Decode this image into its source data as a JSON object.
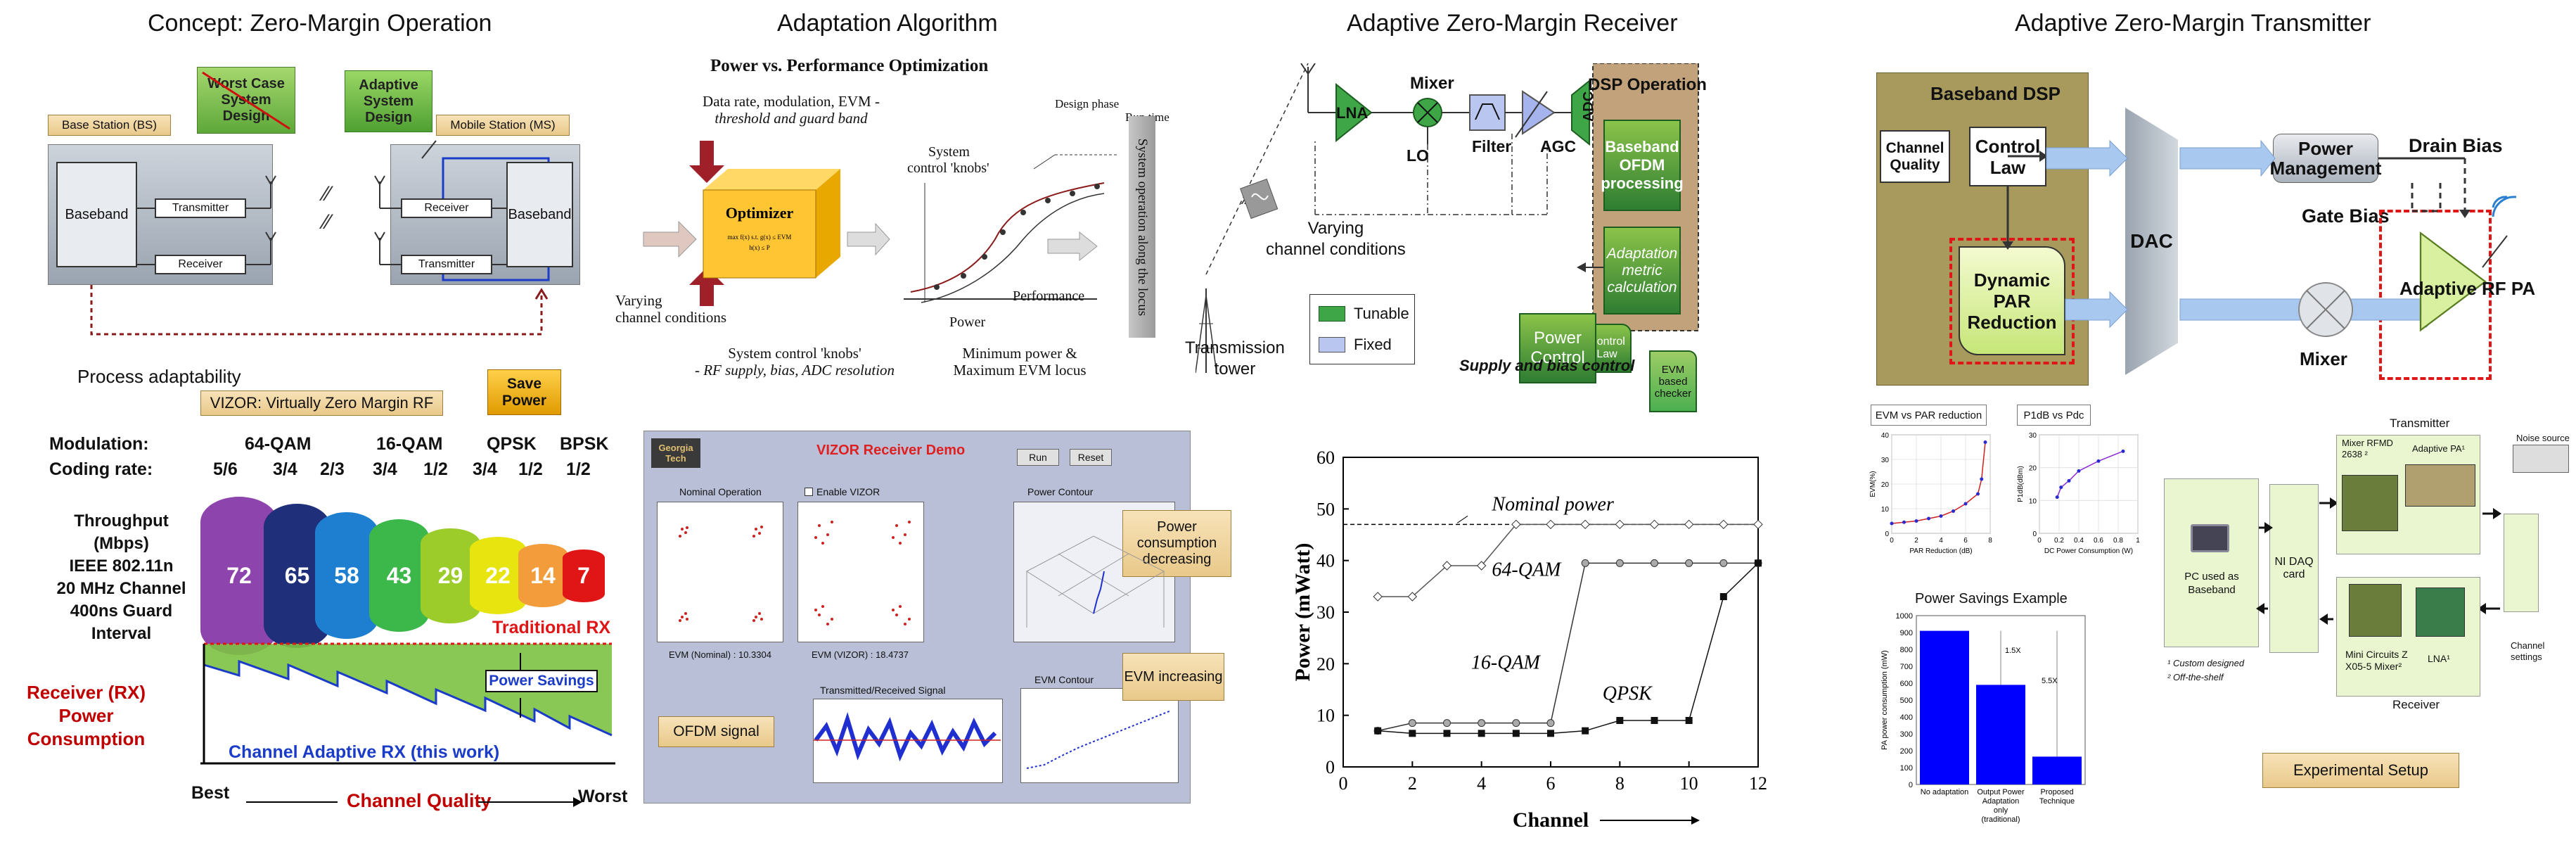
{
  "titles": {
    "concept": "Concept: Zero-Margin Operation",
    "adaptation": "Adaptation Algorithm",
    "receiver": "Adaptive Zero-Margin Receiver",
    "transmitter": "Adaptive Zero-Margin Transmitter"
  },
  "concept": {
    "worst_case": "Worst Case System Design",
    "adaptive": "Adaptive System Design",
    "base_station": "Base Station (BS)",
    "mobile_station": "Mobile Station (MS)",
    "baseband": "Baseband",
    "transmitter": "Transmitter",
    "receiver": "Receiver",
    "process": "Process adaptability",
    "vizor": "VIZOR: Virtually Zero Margin RF",
    "save_power": "Save Power",
    "modulation_label": "Modulation:",
    "coding_label": "Coding rate:",
    "modulations": [
      "64-QAM",
      "16-QAM",
      "QPSK",
      "BPSK"
    ],
    "coding_rates": [
      "5/6",
      "3/4",
      "2/3",
      "3/4",
      "1/2",
      "3/4",
      "1/2",
      "1/2"
    ],
    "throughput_lines": [
      "Throughput (Mbps)",
      "IEEE 802.11n",
      "20 MHz Channel",
      "400ns Guard Interval"
    ],
    "throughputs": [
      "72",
      "65",
      "58",
      "43",
      "29",
      "22",
      "14",
      "7"
    ],
    "seg_colors": [
      "#8e44ad",
      "#1f2f7a",
      "#1e7fd0",
      "#3cb84a",
      "#9ccc2a",
      "#e8e410",
      "#f39c3c",
      "#e01515"
    ],
    "traditional_rx": "Traditional RX",
    "power_savings": "Power Savings",
    "rx_power": [
      "Receiver (RX)",
      "Power",
      "Consumption"
    ],
    "channel_adaptive": "Channel Adaptive RX (this work)",
    "best": "Best",
    "worst": "Worst",
    "channel_quality": "Channel Quality"
  },
  "adaptation": {
    "heading": "Power vs. Performance Optimization",
    "inputs": [
      "Data rate, modulation, EVM -",
      "threshold and guard band"
    ],
    "optimizer": "Optimizer",
    "varying": [
      "Varying",
      "channel conditions"
    ],
    "knobs_bottom": [
      "System control 'knobs'",
      "- RF supply, bias, ADC resolution"
    ],
    "knobs_top": [
      "System",
      "control 'knobs'"
    ],
    "design_phase": "Design phase",
    "run_time": "Run time",
    "power": "Power",
    "performance": "Performance",
    "min_power": [
      "Minimum power &",
      "Maximum EVM locus"
    ],
    "system_operation": "System operation along the locus",
    "demo_title": "VIZOR Receiver Demo",
    "run": "Run",
    "reset": "Reset",
    "georgia_tech": "Georgia Tech",
    "nominal_operation": "Nominal Operation",
    "enable_vizor": "Enable VIZOR",
    "power_contour": "Power Contour",
    "evm_nominal": "EVM (Nominal) :   10.3304",
    "evm_vizor": "EVM (VIZOR) :   18.4737",
    "trx_signal": "Transmitted/Received Signal",
    "evm_contour": "EVM Contour",
    "pc_decreasing": "Power consumption decreasing",
    "evm_increasing": "EVM increasing",
    "ofdm_signal": "OFDM signal"
  },
  "receiver": {
    "varying": [
      "Varying",
      "channel conditions"
    ],
    "tower": [
      "Transmission",
      "tower"
    ],
    "lna": "LNA",
    "mixer": "Mixer",
    "lo": "LO",
    "filter": "Filter",
    "agc": "AGC",
    "adc": "ADC",
    "dsp_op": "DSP Operation",
    "baseband_ofdm": "Baseband OFDM processing",
    "adaptation_metric": "Adaptation metric calculation",
    "control_law": "Control Law",
    "evm_checker": "EVM based checker",
    "power_control": "Power Control",
    "supply_bias": "Supply and bias control",
    "legend_tunable": "Tunable",
    "legend_fixed": "Fixed"
  },
  "chart_data": [
    {
      "type": "line",
      "title": "",
      "xlabel": "Channel",
      "ylabel": "Power (mWatt)",
      "xlim": [
        0,
        12
      ],
      "ylim": [
        0,
        60
      ],
      "xticks": [
        0,
        2,
        4,
        6,
        8,
        10,
        12
      ],
      "yticks": [
        0,
        10,
        20,
        30,
        40,
        50,
        60
      ],
      "nominal_power": 47,
      "nominal_label": "Nominal power",
      "series": [
        {
          "name": "64-QAM",
          "x": [
            1,
            2,
            3,
            4,
            5,
            6,
            7,
            8,
            9,
            10,
            11,
            12
          ],
          "y": [
            33,
            33,
            39,
            39,
            47,
            47,
            47,
            47,
            47,
            47,
            47,
            47
          ]
        },
        {
          "name": "16-QAM",
          "x": [
            1,
            2,
            3,
            4,
            5,
            6,
            7,
            8,
            9,
            10,
            11,
            12
          ],
          "y": [
            7,
            8.5,
            8.5,
            8.5,
            8.5,
            8.5,
            39.5,
            39.5,
            39.5,
            39.5,
            39.5,
            39.5
          ]
        },
        {
          "name": "QPSK",
          "x": [
            1,
            2,
            3,
            4,
            5,
            6,
            7,
            8,
            9,
            10,
            11,
            12
          ],
          "y": [
            7,
            6.5,
            6.5,
            6.5,
            6.5,
            6.5,
            7,
            9,
            9,
            9,
            33,
            39.5
          ]
        }
      ]
    },
    {
      "type": "line",
      "title": "EVM vs PAR reduction",
      "xlabel": "PAR Reduction (dB)",
      "ylabel": "EVM(%)",
      "xlim": [
        0,
        8
      ],
      "ylim": [
        0,
        40
      ],
      "xticks": [
        0,
        2,
        4,
        6,
        8
      ],
      "yticks": [
        0,
        10,
        20,
        30,
        40
      ],
      "series": [
        {
          "name": "",
          "x": [
            0,
            1,
            2,
            3,
            4,
            5,
            6,
            7,
            7.3,
            7.6
          ],
          "y": [
            4,
            4.5,
            5,
            6,
            7,
            9,
            12,
            16,
            22,
            37
          ]
        }
      ]
    },
    {
      "type": "line",
      "title": "P1dB vs Pdc",
      "xlabel": "DC Power Consumption (W)",
      "ylabel": "P1dB(dBm)",
      "xlim": [
        0,
        1
      ],
      "ylim": [
        0,
        30
      ],
      "xticks": [
        0,
        0.2,
        0.4,
        0.6,
        0.8,
        1
      ],
      "yticks": [
        0,
        10,
        20,
        30
      ],
      "series": [
        {
          "name": "",
          "x": [
            0.18,
            0.22,
            0.3,
            0.4,
            0.6,
            0.85
          ],
          "y": [
            11,
            14,
            16,
            19,
            22,
            25
          ]
        }
      ]
    },
    {
      "type": "bar",
      "title": "Power Savings Example",
      "ylabel": "PA power consumption (mW)",
      "categories": [
        "No adaptation",
        "Output Power Adaptation only (traditional)",
        "Proposed Technique"
      ],
      "values": [
        910,
        590,
        165
      ],
      "ylim": [
        0,
        1000
      ],
      "yticks": [
        0,
        100,
        200,
        300,
        400,
        500,
        600,
        700,
        800,
        900,
        1000
      ],
      "annotations": [
        "1.5X",
        "5.5X"
      ],
      "color": "#0000ff"
    }
  ],
  "transmitter": {
    "baseband_dsp": "Baseband DSP",
    "channel_quality": "Channel Quality",
    "control_law": "Control Law",
    "dynamic_par": "Dynamic PAR Reduction",
    "dac": "DAC",
    "power_management": "Power Management",
    "drain_bias": "Drain Bias",
    "gate_bias": "Gate Bias",
    "adaptive_rf_pa": "Adaptive RF PA",
    "mixer": "Mixer",
    "setup": {
      "transmitter": "Transmitter",
      "receiver": "Receiver",
      "mixer_rfmd": "Mixer RFMD 2638 ²",
      "adaptive_pa": "Adaptive PA¹",
      "noise_source": "Noise source",
      "pc": "PC used as Baseband",
      "ni_daq": "NI DAQ card",
      "mini_circuits": "Mini Circuits Z X05-5 Mixer²",
      "lna": "LNA¹",
      "channel_settings": "Channel settings",
      "custom": "¹ Custom designed",
      "off_shelf": "² Off-the-shelf",
      "experimental": "Experimental Setup"
    }
  }
}
